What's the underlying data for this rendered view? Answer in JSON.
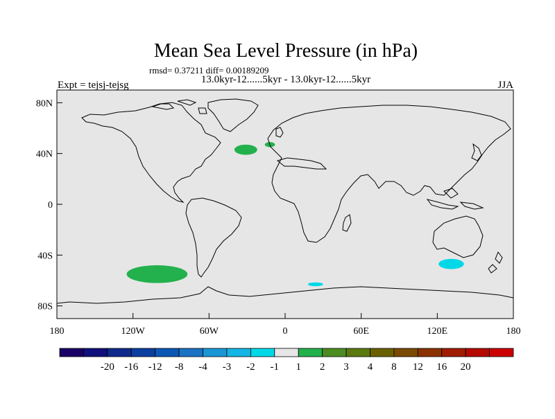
{
  "chart_data": {
    "type": "heatmap",
    "title": "Mean Sea Level Pressure (in hPa)",
    "stats": "rmsd= 0.37211  diff= 0.00189209",
    "subtitle": "13.0kyr-12......5kyr - 13.0kyr-12......5kyr",
    "left_label": "Expt = tejsj-tejsg",
    "right_label": "JJA",
    "xlim": [
      -180,
      180
    ],
    "ylim": [
      -90,
      90
    ],
    "x_ticks": [
      {
        "value": -180,
        "label": "180"
      },
      {
        "value": -120,
        "label": "120W"
      },
      {
        "value": -60,
        "label": "60W"
      },
      {
        "value": 0,
        "label": "0"
      },
      {
        "value": 60,
        "label": "60E"
      },
      {
        "value": 120,
        "label": "120E"
      },
      {
        "value": 180,
        "label": "180"
      }
    ],
    "y_ticks": [
      {
        "value": 80,
        "label": "80N"
      },
      {
        "value": 40,
        "label": "40N"
      },
      {
        "value": 0,
        "label": "0"
      },
      {
        "value": -40,
        "label": "40S"
      },
      {
        "value": -80,
        "label": "80S"
      }
    ],
    "anomalies": [
      {
        "name": "north-atlantic-anomaly",
        "lon": -31,
        "lat": 43,
        "dlon": 9,
        "dlat": 4,
        "color": "#22b14c"
      },
      {
        "name": "iceland-anomaly",
        "lon": -12,
        "lat": 47,
        "dlon": 4,
        "dlat": 2,
        "color": "#22b14c"
      },
      {
        "name": "south-pacific-anomaly",
        "lon": -101,
        "lat": -55,
        "dlon": 24,
        "dlat": 7,
        "color": "#22b14c"
      },
      {
        "name": "southern-ocean-anomaly",
        "lon": 24,
        "lat": -63,
        "dlon": 6,
        "dlat": 1.5,
        "color": "#00d8e8"
      },
      {
        "name": "south-indian-anomaly",
        "lon": 131,
        "lat": -47,
        "dlon": 10,
        "dlat": 4,
        "color": "#00d8e8"
      }
    ],
    "colorbar": {
      "colors": [
        "#1a0066",
        "#10107a",
        "#0f2a8c",
        "#0a3fa0",
        "#0a57b4",
        "#1a72c4",
        "#1a96d6",
        "#14b4e4",
        "#00d8e8",
        "#e6e6e6",
        "#22b14c",
        "#4c8c22",
        "#5a7a10",
        "#6a6000",
        "#7a4a00",
        "#8a3200",
        "#a01c00",
        "#b40a00",
        "#cc0000"
      ],
      "labels": [
        "-20",
        "-16",
        "-12",
        "-8",
        "-4",
        "-3",
        "-2",
        "-1",
        "1",
        "2",
        "3",
        "4",
        "8",
        "12",
        "16",
        "20"
      ]
    }
  }
}
